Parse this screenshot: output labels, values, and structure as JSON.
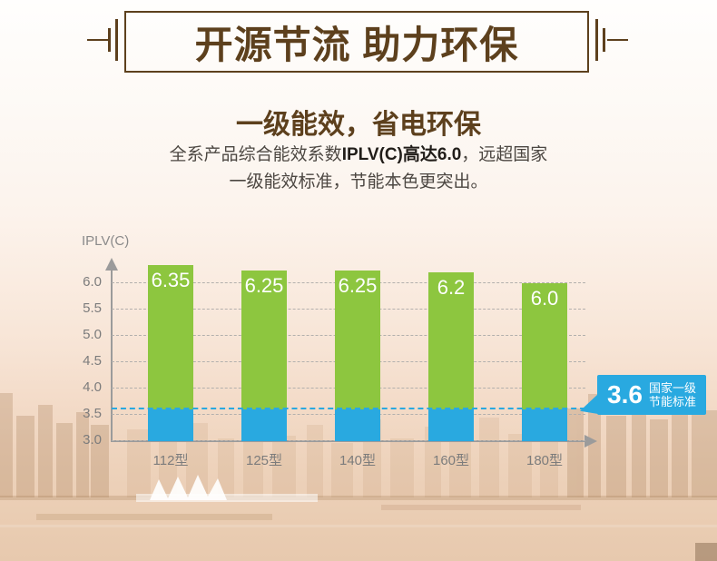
{
  "header": {
    "title": "开源节流 助力环保"
  },
  "intro": {
    "heading": "一级能效，省电环保",
    "line1_prefix": "全系产品综合能效系数",
    "line1_bold": "IPLV(C)高达6.0",
    "line1_suffix": "，远超国家",
    "line2": "一级能效标准，节能本色更突出。"
  },
  "chart_data": {
    "type": "bar",
    "title": "",
    "axis_label": "IPLV(C)",
    "categories": [
      "112型",
      "125型",
      "140型",
      "160型",
      "180型"
    ],
    "values": [
      6.35,
      6.25,
      6.25,
      6.2,
      6.0
    ],
    "value_labels": [
      "6.35",
      "6.25",
      "6.25",
      "6.2",
      "6.0"
    ],
    "yticks": [
      "6.0",
      "5.5",
      "5.0",
      "4.5",
      "4.0",
      "3.5",
      "3.0"
    ],
    "ylim": [
      3.0,
      6.5
    ],
    "grid": "horizontal dashed",
    "legend": "none",
    "baseline": {
      "value": 3.6,
      "label_value": "3.6",
      "label_line1": "国家一级",
      "label_line2": "节能标准"
    },
    "colors": {
      "bar_above_baseline": "#8dc63f",
      "bar_below_baseline": "#29a9e0",
      "callout_background": "#29a9e0",
      "baseline_dash": "#29a9e0",
      "axis": "#9b9b9b",
      "gridline": "#b3b0ad",
      "tick_text": "#7c7c7c",
      "title_brown": "#5d401d"
    }
  }
}
